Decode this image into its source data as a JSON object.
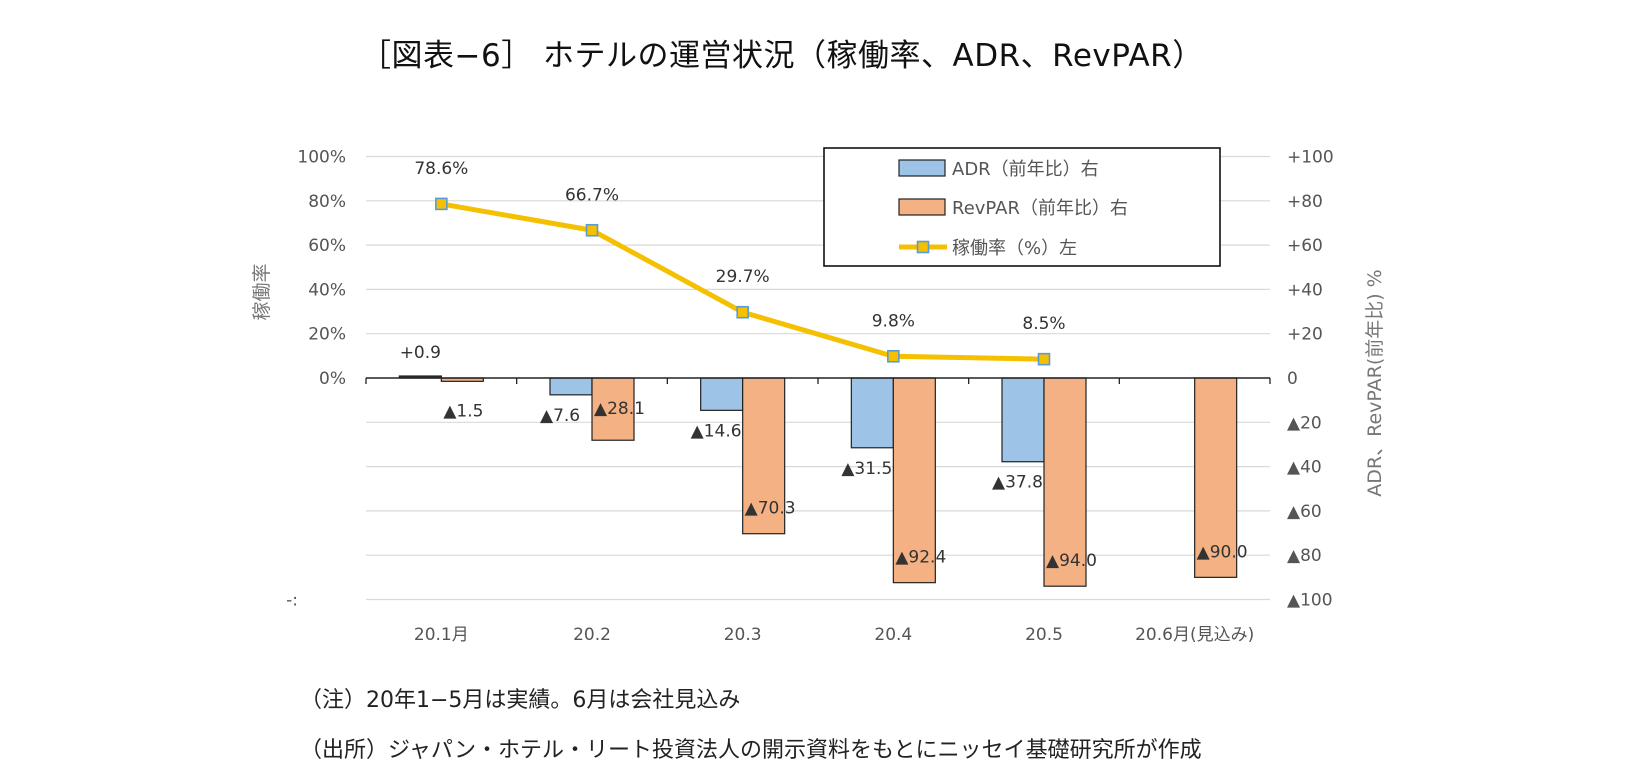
{
  "title": "［図表−6］ ホテルの運営状況（稼働率、ADR、RevPAR）",
  "notes": {
    "note1": "（注）20年1−5月は実績。6月は会社見込み",
    "note2": "（出所）ジャパン・ホテル・リート投資法人の開示資料をもとにニッセイ基礎研究所が作成"
  },
  "colors": {
    "adr": "#9dc3e6",
    "revpar": "#f4b183",
    "occupancy": "#f5c000",
    "marker": "#5b9bd5",
    "grid": "#d9d9d9"
  },
  "chart_data": {
    "type": "bar",
    "categories": [
      "20.1月",
      "20.2",
      "20.3",
      "20.4",
      "20.5",
      "20.6月(見込み)"
    ],
    "left_axis": {
      "title": "稼働率",
      "ylim": [
        -100,
        100
      ],
      "tick_labels": [
        "100%",
        "80%",
        "60%",
        "40%",
        "20%",
        "0%"
      ],
      "tick_values": [
        100,
        80,
        60,
        40,
        20,
        0
      ],
      "bottom_fragment": "-:"
    },
    "right_axis": {
      "title": "ADR、RevPAR(前年比) %",
      "ylim": [
        -100,
        100
      ],
      "tick_labels": [
        "+100",
        "+80",
        "+60",
        "+40",
        "+20",
        "0",
        "▲20",
        "▲40",
        "▲60",
        "▲80",
        "▲100"
      ],
      "tick_values": [
        100,
        80,
        60,
        40,
        20,
        0,
        -20,
        -40,
        -60,
        -80,
        -100
      ]
    },
    "legend_position": "top-right",
    "series": [
      {
        "name": "ADR（前年比）右",
        "type": "bar",
        "values": [
          0.9,
          -7.6,
          -14.6,
          -31.5,
          -37.8,
          null
        ],
        "labels": [
          "+0.9",
          "▲7.6",
          "▲14.6",
          "▲31.5",
          "▲37.8",
          ""
        ]
      },
      {
        "name": "RevPAR（前年比）右",
        "type": "bar",
        "values": [
          -1.5,
          -28.1,
          -70.3,
          -92.4,
          -94.0,
          -90.0
        ],
        "labels": [
          "▲1.5",
          "▲28.1",
          "▲70.3",
          "▲92.4",
          "▲94.0",
          "▲90.0"
        ]
      },
      {
        "name": "稼働率（%）左",
        "type": "line",
        "values": [
          78.6,
          66.7,
          29.7,
          9.8,
          8.5,
          null
        ],
        "labels": [
          "78.6%",
          "66.7%",
          "29.7%",
          "9.8%",
          "8.5%",
          ""
        ]
      }
    ]
  }
}
